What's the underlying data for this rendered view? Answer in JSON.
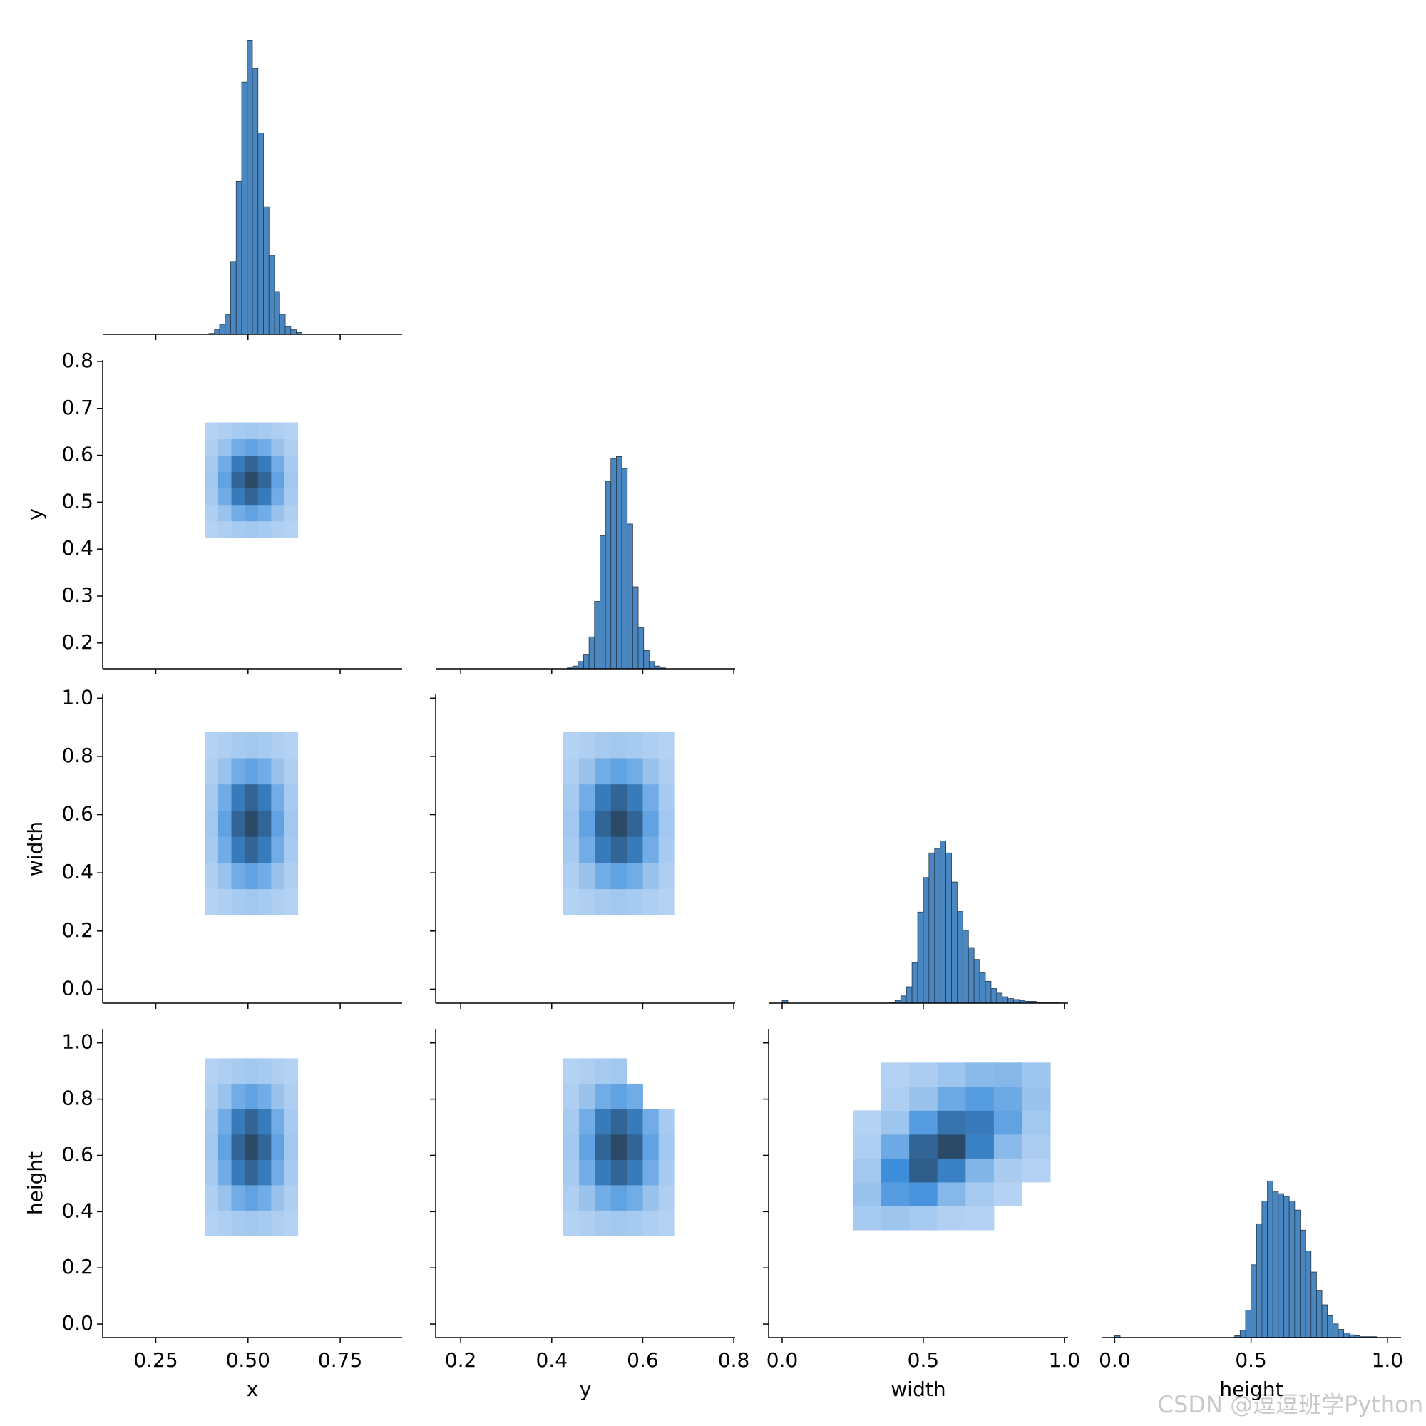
{
  "chart_data": {
    "type": "pairplot",
    "variables": [
      {
        "label": "x",
        "lim": [
          0.106,
          0.918
        ],
        "xticks": [
          0.25,
          {
            "value": 0.5,
            "label": "0.50"
          },
          0.75
        ]
      },
      {
        "label": "y",
        "lim": [
          0.145,
          0.803
        ],
        "xticks": [
          0.2,
          0.4,
          0.6,
          0.8
        ],
        "yticks": [
          0.2,
          0.3,
          0.4,
          0.5,
          0.6,
          0.7,
          0.8
        ]
      },
      {
        "label": "width",
        "lim": [
          -0.048,
          1.013
        ],
        "xticks": [
          {
            "value": 0,
            "label": "0.0"
          },
          0.5,
          {
            "value": 1,
            "label": "1.0"
          }
        ],
        "yticks": [
          {
            "value": 0,
            "label": "0.0"
          },
          0.2,
          0.4,
          0.6,
          0.8,
          {
            "value": 1,
            "label": "1.0"
          }
        ]
      },
      {
        "label": "height",
        "lim": [
          -0.048,
          1.05
        ],
        "xticks": [
          {
            "value": 0,
            "label": "0.0"
          },
          0.5,
          {
            "value": 1,
            "label": "1.0"
          }
        ],
        "yticks": [
          {
            "value": 0,
            "label": "0.0"
          },
          0.2,
          0.4,
          0.6,
          0.8,
          {
            "value": 1,
            "label": "1.0"
          }
        ]
      }
    ],
    "hist_ylim": [
      0,
      3390
    ],
    "hist_color": "#4a86c0",
    "edge_color": "#26384a",
    "cmap": [
      "#b6d3f3",
      "#3d8edb",
      "#2b4a68"
    ],
    "histograms": [
      {
        "bins": [
          0.379,
          0.394,
          0.409,
          0.423,
          0.438,
          0.453,
          0.468,
          0.483,
          0.498,
          0.512,
          0.527,
          0.542,
          0.557,
          0.572,
          0.586,
          0.601,
          0.616,
          0.631,
          0.646
        ],
        "values": [
          0,
          10,
          50,
          110,
          220,
          800,
          1680,
          2770,
          3230,
          2920,
          2210,
          1400,
          870,
          470,
          220,
          90,
          50,
          20
        ]
      },
      {
        "bins": [
          0.41,
          0.422,
          0.434,
          0.446,
          0.458,
          0.47,
          0.482,
          0.494,
          0.506,
          0.518,
          0.53,
          0.542,
          0.554,
          0.566,
          0.578,
          0.59,
          0.602,
          0.614,
          0.626,
          0.638,
          0.65
        ],
        "values": [
          0,
          0,
          10,
          30,
          80,
          160,
          350,
          740,
          1460,
          2060,
          2310,
          2330,
          2200,
          1590,
          900,
          450,
          200,
          80,
          30,
          10
        ]
      },
      {
        "bins": [
          0,
          0.02,
          0.04,
          0.06,
          0.08,
          0.1,
          0.12,
          0.14,
          0.16,
          0.18,
          0.2,
          0.22,
          0.24,
          0.26,
          0.28,
          0.3,
          0.32,
          0.34,
          0.36,
          0.38,
          0.4,
          0.42,
          0.44,
          0.46,
          0.48,
          0.5,
          0.52,
          0.54,
          0.56,
          0.58,
          0.6,
          0.62,
          0.64,
          0.66,
          0.68,
          0.7,
          0.72,
          0.74,
          0.76,
          0.78,
          0.8,
          0.82,
          0.84,
          0.86,
          0.88,
          0.9,
          0.92,
          0.94,
          0.96,
          0.98,
          1.0
        ],
        "values": [
          30,
          0,
          0,
          0,
          0,
          0,
          0,
          0,
          0,
          0,
          0,
          0,
          0,
          0,
          0,
          0,
          0,
          0,
          0,
          10,
          30,
          80,
          180,
          450,
          1000,
          1380,
          1650,
          1700,
          1780,
          1650,
          1330,
          1010,
          800,
          610,
          480,
          340,
          240,
          160,
          110,
          70,
          50,
          40,
          30,
          20,
          20,
          10,
          10,
          10,
          10,
          0
        ]
      },
      {
        "bins": [
          0,
          0.02,
          0.04,
          0.06,
          0.08,
          0.1,
          0.12,
          0.14,
          0.16,
          0.18,
          0.2,
          0.22,
          0.24,
          0.26,
          0.28,
          0.3,
          0.32,
          0.34,
          0.36,
          0.38,
          0.4,
          0.42,
          0.44,
          0.46,
          0.48,
          0.5,
          0.52,
          0.54,
          0.56,
          0.58,
          0.6,
          0.62,
          0.64,
          0.66,
          0.68,
          0.7,
          0.72,
          0.74,
          0.76,
          0.78,
          0.8,
          0.82,
          0.84,
          0.86,
          0.88,
          0.9,
          0.92,
          0.94,
          0.96,
          0.98,
          1.0
        ],
        "values": [
          20,
          0,
          0,
          0,
          0,
          0,
          0,
          0,
          0,
          0,
          0,
          0,
          0,
          0,
          0,
          0,
          0,
          0,
          0,
          0,
          0,
          0,
          20,
          80,
          300,
          800,
          1250,
          1500,
          1720,
          1600,
          1580,
          1550,
          1500,
          1400,
          1180,
          950,
          720,
          520,
          360,
          240,
          150,
          90,
          50,
          30,
          20,
          10,
          10,
          10,
          0,
          0
        ]
      }
    ],
    "heatmaps": [
      {
        "xbins": [
          0.383,
          0.419,
          0.455,
          0.491,
          0.527,
          0.563,
          0.599,
          0.635
        ],
        "ybins": [
          0.425,
          0.46,
          0.495,
          0.53,
          0.565,
          0.6,
          0.635,
          0.67
        ],
        "counts": [
          [
            1,
            3,
            6,
            8,
            6,
            3,
            1
          ],
          [
            3,
            12,
            28,
            35,
            28,
            12,
            3
          ],
          [
            6,
            28,
            64,
            80,
            64,
            28,
            6
          ],
          [
            8,
            35,
            80,
            100,
            80,
            35,
            8
          ],
          [
            6,
            28,
            64,
            80,
            64,
            28,
            6
          ],
          [
            3,
            12,
            28,
            35,
            28,
            12,
            3
          ],
          [
            1,
            3,
            6,
            8,
            6,
            3,
            1
          ]
        ]
      },
      {
        "xbins": [
          0.383,
          0.419,
          0.455,
          0.491,
          0.527,
          0.563,
          0.599,
          0.635
        ],
        "ybins": [
          0.255,
          0.345,
          0.435,
          0.525,
          0.615,
          0.705,
          0.795,
          0.885
        ],
        "counts": [
          [
            1,
            3,
            6,
            8,
            6,
            3,
            1
          ],
          [
            3,
            12,
            28,
            35,
            28,
            12,
            3
          ],
          [
            6,
            28,
            64,
            80,
            64,
            28,
            6
          ],
          [
            8,
            35,
            80,
            100,
            80,
            35,
            8
          ],
          [
            6,
            28,
            64,
            80,
            64,
            28,
            6
          ],
          [
            3,
            12,
            28,
            35,
            28,
            12,
            3
          ],
          [
            1,
            3,
            6,
            8,
            6,
            3,
            1
          ]
        ]
      },
      {
        "xbins": [
          0.425,
          0.46,
          0.495,
          0.53,
          0.565,
          0.6,
          0.635,
          0.67
        ],
        "ybins": [
          0.255,
          0.345,
          0.435,
          0.525,
          0.615,
          0.705,
          0.795,
          0.885
        ],
        "counts": [
          [
            1,
            3,
            6,
            8,
            6,
            3,
            1
          ],
          [
            3,
            12,
            28,
            35,
            28,
            12,
            3
          ],
          [
            6,
            28,
            64,
            80,
            64,
            28,
            6
          ],
          [
            8,
            35,
            80,
            100,
            80,
            35,
            8
          ],
          [
            6,
            28,
            64,
            80,
            64,
            28,
            6
          ],
          [
            3,
            12,
            28,
            35,
            28,
            12,
            3
          ],
          [
            1,
            3,
            6,
            8,
            6,
            3,
            1
          ]
        ]
      },
      {
        "xbins": [
          0.383,
          0.419,
          0.455,
          0.491,
          0.527,
          0.563,
          0.599,
          0.635
        ],
        "ybins": [
          0.315,
          0.405,
          0.495,
          0.585,
          0.675,
          0.765,
          0.855,
          0.945
        ],
        "counts": [
          [
            1,
            3,
            6,
            8,
            6,
            3,
            1
          ],
          [
            3,
            12,
            28,
            35,
            28,
            12,
            3
          ],
          [
            6,
            28,
            64,
            80,
            64,
            28,
            6
          ],
          [
            8,
            35,
            80,
            100,
            80,
            35,
            8
          ],
          [
            6,
            28,
            64,
            80,
            64,
            28,
            6
          ],
          [
            3,
            12,
            28,
            35,
            28,
            12,
            3
          ],
          [
            1,
            3,
            6,
            8,
            6,
            3,
            1
          ]
        ]
      },
      {
        "xbins": [
          0.425,
          0.46,
          0.495,
          0.53,
          0.565,
          0.6,
          0.635,
          0.67
        ],
        "ybins": [
          0.315,
          0.405,
          0.495,
          0.585,
          0.675,
          0.765,
          0.855,
          0.945
        ],
        "counts": [
          [
            1,
            3,
            6,
            8,
            6,
            3,
            1
          ],
          [
            3,
            12,
            28,
            35,
            28,
            12,
            3
          ],
          [
            6,
            28,
            64,
            80,
            64,
            28,
            6
          ],
          [
            8,
            35,
            80,
            100,
            80,
            35,
            8
          ],
          [
            6,
            28,
            64,
            80,
            64,
            28,
            6
          ],
          [
            3,
            12,
            28,
            35,
            28,
            0,
            0
          ],
          [
            1,
            3,
            6,
            8,
            0,
            0,
            0
          ]
        ]
      },
      {
        "xbins": [
          0.25,
          0.35,
          0.45,
          0.55,
          0.65,
          0.75,
          0.85,
          0.95
        ],
        "ybins": [
          0.335,
          0.42,
          0.505,
          0.59,
          0.675,
          0.76,
          0.845,
          0.93
        ],
        "counts": [
          [
            6,
            10,
            6,
            2,
            1,
            0,
            0
          ],
          [
            12,
            40,
            45,
            20,
            6,
            1,
            0
          ],
          [
            8,
            50,
            85,
            60,
            22,
            5,
            1
          ],
          [
            3,
            30,
            80,
            100,
            60,
            18,
            4
          ],
          [
            1,
            10,
            40,
            70,
            65,
            35,
            8
          ],
          [
            0,
            3,
            12,
            30,
            40,
            30,
            12
          ],
          [
            0,
            1,
            4,
            10,
            18,
            20,
            10
          ]
        ]
      }
    ],
    "watermark": "CSDN @逗逗班学Python"
  }
}
